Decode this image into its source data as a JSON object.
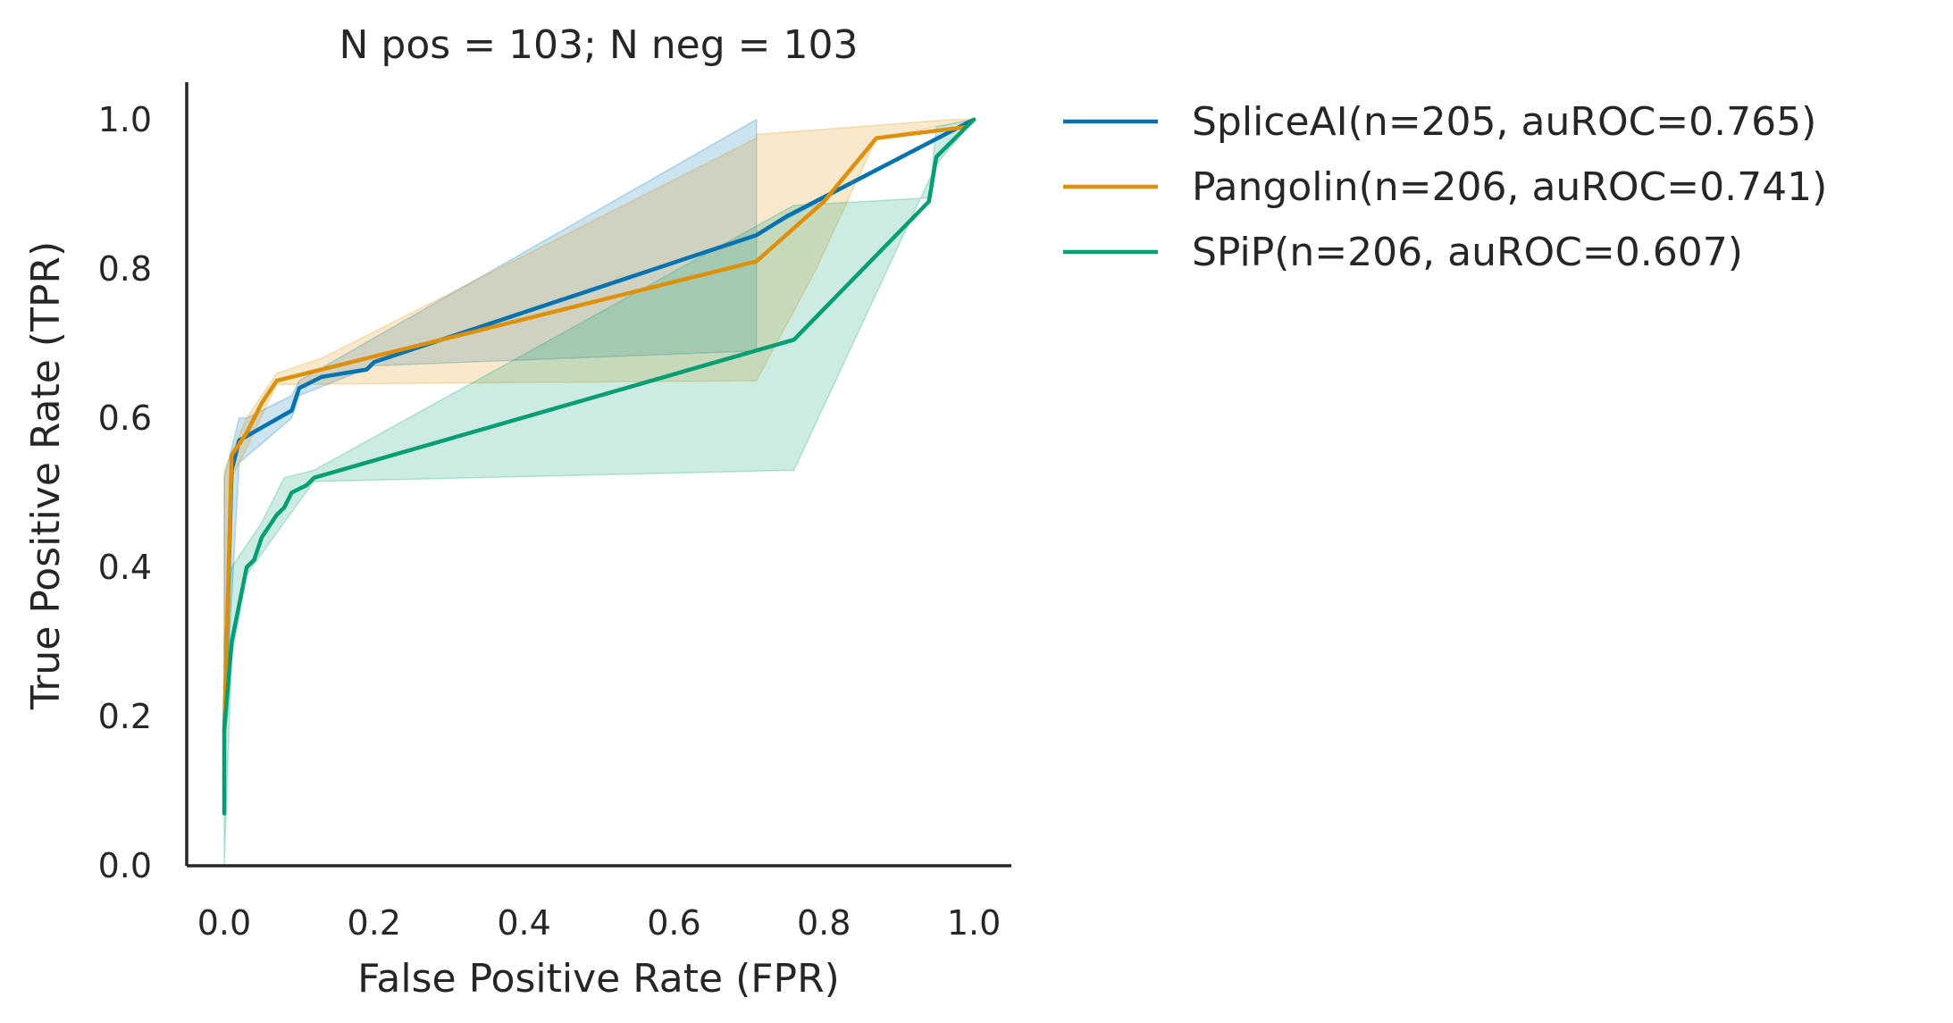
{
  "chart_data": {
    "type": "line",
    "title": "N pos = 103; N neg = 103",
    "xlabel": "False Positive Rate (FPR)",
    "ylabel": "True Positive Rate (TPR)",
    "xlim": [
      -0.05,
      1.05
    ],
    "ylim": [
      0.0,
      1.05
    ],
    "xticks": [
      "0.0",
      "0.2",
      "0.4",
      "0.6",
      "0.8",
      "1.0"
    ],
    "yticks": [
      "0.0",
      "0.2",
      "0.4",
      "0.6",
      "0.8",
      "1.0"
    ],
    "grid": false,
    "legend": "outside-right",
    "series": [
      {
        "name": "SpliceAI(n=205, auROC=0.765)",
        "color": "#0072b2",
        "x": [
          0.0,
          0.01,
          0.02,
          0.09,
          0.1,
          0.13,
          0.19,
          0.2,
          0.71,
          0.75,
          1.0
        ],
        "y": [
          0.18,
          0.53,
          0.57,
          0.61,
          0.64,
          0.655,
          0.665,
          0.675,
          0.845,
          0.87,
          1.0
        ],
        "band_upper": [
          [
            0.0,
            0.52
          ],
          [
            0.02,
            0.6
          ],
          [
            0.03,
            0.6
          ],
          [
            0.09,
            0.63
          ],
          [
            0.1,
            0.65
          ],
          [
            0.71,
            1.0
          ],
          [
            0.71,
            0.845
          ],
          [
            1.0,
            1.0
          ]
        ],
        "band_lower": [
          [
            1.0,
            1.0
          ],
          [
            0.71,
            0.845
          ],
          [
            0.71,
            0.69
          ],
          [
            0.2,
            0.67
          ],
          [
            0.1,
            0.63
          ],
          [
            0.09,
            0.6
          ],
          [
            0.02,
            0.54
          ],
          [
            0.0,
            0.18
          ]
        ]
      },
      {
        "name": "Pangolin(n=206, auROC=0.741)",
        "color": "#de8f05",
        "x": [
          0.0,
          0.01,
          0.03,
          0.05,
          0.07,
          0.71,
          0.8,
          0.87,
          0.99,
          1.0
        ],
        "y": [
          0.18,
          0.55,
          0.58,
          0.62,
          0.65,
          0.81,
          0.89,
          0.975,
          0.99,
          1.0
        ],
        "band_upper": [
          [
            0.0,
            0.53
          ],
          [
            0.03,
            0.6
          ],
          [
            0.07,
            0.66
          ],
          [
            0.13,
            0.68
          ],
          [
            0.71,
            0.975
          ],
          [
            0.71,
            0.98
          ],
          [
            0.97,
            1.0
          ],
          [
            1.0,
            1.0
          ]
        ],
        "band_lower": [
          [
            1.0,
            1.0
          ],
          [
            0.87,
            0.975
          ],
          [
            0.79,
            0.8
          ],
          [
            0.71,
            0.65
          ],
          [
            0.07,
            0.645
          ],
          [
            0.03,
            0.56
          ],
          [
            0.01,
            0.52
          ],
          [
            0.0,
            0.18
          ]
        ]
      },
      {
        "name": "SPiP(n=206, auROC=0.607)",
        "color": "#029e73",
        "x": [
          0.0,
          0.0,
          0.01,
          0.02,
          0.03,
          0.04,
          0.05,
          0.07,
          0.08,
          0.09,
          0.11,
          0.12,
          0.76,
          0.94,
          0.95,
          1.0
        ],
        "y": [
          0.07,
          0.18,
          0.3,
          0.35,
          0.4,
          0.41,
          0.44,
          0.47,
          0.48,
          0.5,
          0.51,
          0.52,
          0.705,
          0.89,
          0.95,
          1.0
        ],
        "band_upper": [
          [
            0.0,
            0.0
          ],
          [
            0.0,
            0.3
          ],
          [
            0.01,
            0.4
          ],
          [
            0.05,
            0.46
          ],
          [
            0.08,
            0.52
          ],
          [
            0.12,
            0.53
          ],
          [
            0.76,
            0.885
          ],
          [
            0.94,
            0.895
          ],
          [
            0.95,
            0.99
          ],
          [
            1.0,
            1.0
          ]
        ],
        "band_lower": [
          [
            1.0,
            1.0
          ],
          [
            0.95,
            0.94
          ],
          [
            0.76,
            0.53
          ],
          [
            0.12,
            0.515
          ],
          [
            0.08,
            0.46
          ],
          [
            0.03,
            0.39
          ],
          [
            0.01,
            0.28
          ],
          [
            0.0,
            0.0
          ]
        ]
      }
    ]
  }
}
